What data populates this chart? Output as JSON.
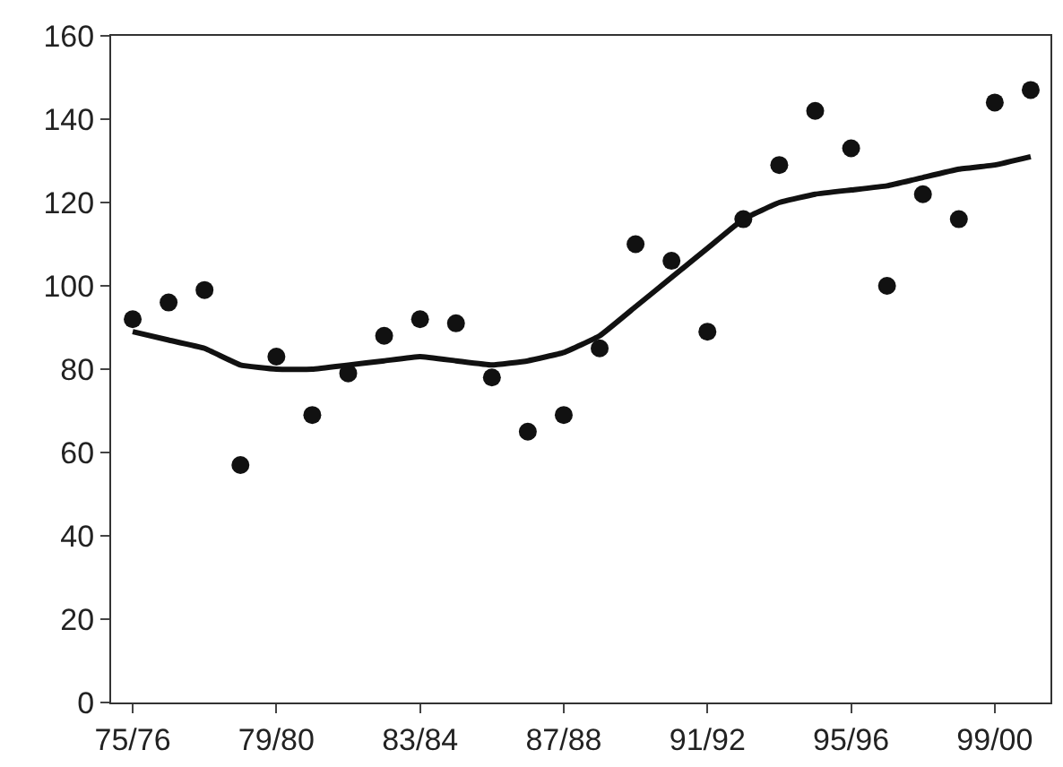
{
  "chart_data": {
    "type": "scatter",
    "categories": [
      "75/76",
      null,
      null,
      null,
      "79/80",
      null,
      null,
      null,
      "83/84",
      null,
      null,
      null,
      "87/88",
      null,
      null,
      null,
      "91/92",
      null,
      null,
      null,
      "95/96",
      null,
      null,
      null,
      "99/00",
      null
    ],
    "series": [
      {
        "marker": "circle",
        "color": "#111111",
        "values": [
          92,
          96,
          99,
          57,
          83,
          69,
          79,
          88,
          92,
          91,
          78,
          65,
          69,
          85,
          110,
          106,
          89,
          116,
          129,
          142,
          133,
          100,
          122,
          116,
          144,
          147
        ]
      },
      {
        "type": "line",
        "marker": "none",
        "color": "#111111",
        "values": [
          89,
          87,
          85,
          81,
          80,
          80,
          81,
          82,
          83,
          82,
          81,
          82,
          84,
          88,
          95,
          102,
          109,
          116,
          120,
          122,
          123,
          124,
          126,
          128,
          129,
          131
        ]
      }
    ],
    "ylim": [
      0,
      160
    ],
    "yticks": [
      0,
      20,
      40,
      60,
      80,
      100,
      120,
      140,
      160
    ],
    "line_style": "solid",
    "legend": false
  }
}
